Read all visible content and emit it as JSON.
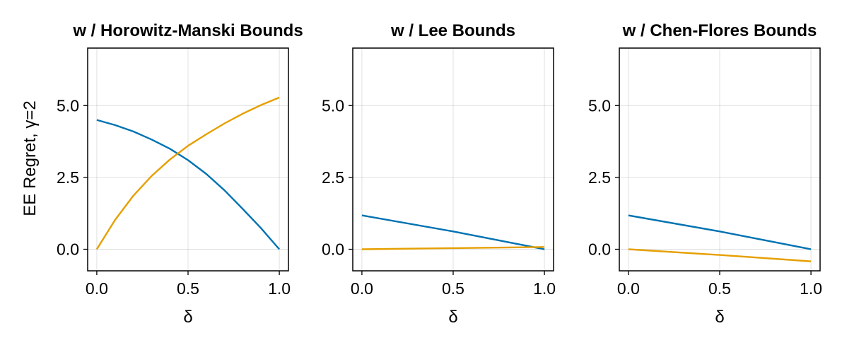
{
  "figure": {
    "ylabel": "EE Regret, γ=2"
  },
  "chart_data": [
    {
      "type": "line",
      "title": "w / Horowitz-Manski Bounds",
      "xlabel": "δ",
      "ylabel": "EE Regret, γ=2",
      "xlim": [
        -0.05,
        1.05
      ],
      "ylim": [
        -0.75,
        7.0
      ],
      "xticks": [
        "0.0",
        "0.5",
        "1.0"
      ],
      "yticks": [
        "0.0",
        "2.5",
        "5.0"
      ],
      "grid": true,
      "x": [
        0.0,
        0.1,
        0.2,
        0.3,
        0.4,
        0.5,
        0.6,
        0.7,
        0.8,
        0.9,
        1.0
      ],
      "series": [
        {
          "color": "#0072b2",
          "values": [
            4.5,
            4.32,
            4.1,
            3.82,
            3.5,
            3.1,
            2.62,
            2.05,
            1.4,
            0.73,
            0.0
          ]
        },
        {
          "color": "#e69f00",
          "values": [
            0.0,
            1.02,
            1.86,
            2.55,
            3.12,
            3.6,
            4.0,
            4.38,
            4.72,
            5.02,
            5.28
          ]
        }
      ]
    },
    {
      "type": "line",
      "title": "w / Lee Bounds",
      "xlabel": "δ",
      "ylabel": "",
      "xlim": [
        -0.05,
        1.05
      ],
      "ylim": [
        -0.75,
        7.0
      ],
      "xticks": [
        "0.0",
        "0.5",
        "1.0"
      ],
      "yticks": [
        "0.0",
        "2.5",
        "5.0"
      ],
      "grid": true,
      "x": [
        0.0,
        0.5,
        1.0
      ],
      "series": [
        {
          "color": "#0072b2",
          "values": [
            1.18,
            0.62,
            0.0
          ]
        },
        {
          "color": "#e69f00",
          "values": [
            0.0,
            0.04,
            0.08
          ]
        }
      ]
    },
    {
      "type": "line",
      "title": "w / Chen-Flores Bounds",
      "xlabel": "δ",
      "ylabel": "",
      "xlim": [
        -0.05,
        1.05
      ],
      "ylim": [
        -0.75,
        7.0
      ],
      "xticks": [
        "0.0",
        "0.5",
        "1.0"
      ],
      "yticks": [
        "0.0",
        "2.5",
        "5.0"
      ],
      "grid": true,
      "x": [
        0.0,
        0.5,
        1.0
      ],
      "series": [
        {
          "color": "#0072b2",
          "values": [
            1.18,
            0.62,
            0.0
          ]
        },
        {
          "color": "#e69f00",
          "values": [
            0.0,
            -0.2,
            -0.42
          ]
        }
      ]
    }
  ]
}
